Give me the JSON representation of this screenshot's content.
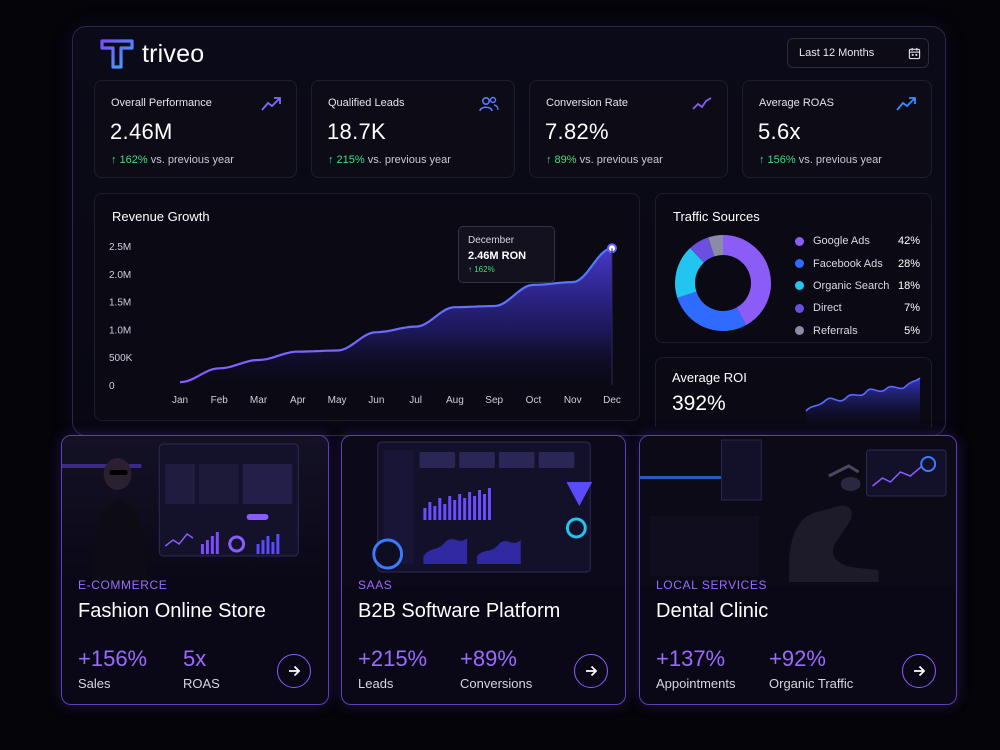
{
  "brand": {
    "name": "triveo",
    "accent": "#7b4dff",
    "accent_light": "#3aa8ff"
  },
  "date_range": {
    "label": "Last 12 Months",
    "icon": "calendar-icon"
  },
  "kpis": [
    {
      "title": "Overall Performance",
      "value": "2.46M",
      "delta": "↑ 162%",
      "delta_suffix": "vs. previous year",
      "icon": "trend-up-icon"
    },
    {
      "title": "Qualified Leads",
      "value": "18.7K",
      "delta": "↑ 215%",
      "delta_suffix": "vs. previous year",
      "icon": "users-icon"
    },
    {
      "title": "Conversion Rate",
      "value": "7.82%",
      "delta": "↑ 89%",
      "delta_suffix": "vs. previous year",
      "icon": "pulse-icon"
    },
    {
      "title": "Average ROAS",
      "value": "5.6x",
      "delta": "↑ 156%",
      "delta_suffix": "vs. previous year",
      "icon": "trend-up-icon"
    }
  ],
  "revenue": {
    "title": "Revenue Growth",
    "tooltip": {
      "month": "December",
      "value": "2.46M RON",
      "delta": "↑ 162%"
    }
  },
  "traffic": {
    "title": "Traffic Sources",
    "sources": [
      {
        "label": "Google Ads",
        "pct": "42%",
        "value": 42,
        "color": "#8b5cf6"
      },
      {
        "label": "Facebook Ads",
        "pct": "28%",
        "value": 28,
        "color": "#2f6bff"
      },
      {
        "label": "Organic Search",
        "pct": "18%",
        "value": 18,
        "color": "#22c4f0"
      },
      {
        "label": "Direct",
        "pct": "7%",
        "value": 7,
        "color": "#6a4fe0"
      },
      {
        "label": "Referrals",
        "pct": "5%",
        "value": 5,
        "color": "#8c8ba6"
      }
    ]
  },
  "roi": {
    "title": "Average ROI",
    "value": "392%"
  },
  "chart_data": {
    "type": "area",
    "title": "Revenue Growth",
    "categories": [
      "Jan",
      "Feb",
      "Mar",
      "Apr",
      "May",
      "Jun",
      "Jul",
      "Aug",
      "Sep",
      "Oct",
      "Nov",
      "Dec"
    ],
    "y_ticks": [
      "2.5M",
      "2.0M",
      "1.5M",
      "1.0M",
      "500K",
      "0"
    ],
    "ylim": [
      0,
      2500000
    ],
    "values": [
      50000,
      300000,
      450000,
      600000,
      620000,
      950000,
      1050000,
      1400000,
      1420000,
      1800000,
      1850000,
      2460000
    ],
    "grid": false
  },
  "cases": [
    {
      "category": "E-COMMERCE",
      "title": "Fashion Online Store",
      "stats": [
        {
          "value": "+156%",
          "label": "Sales"
        },
        {
          "value": "5x",
          "label": "ROAS"
        }
      ]
    },
    {
      "category": "SAAS",
      "title": "B2B Software Platform",
      "stats": [
        {
          "value": "+215%",
          "label": "Leads"
        },
        {
          "value": "+89%",
          "label": "Conversions"
        }
      ]
    },
    {
      "category": "LOCAL SERVICES",
      "title": "Dental Clinic",
      "stats": [
        {
          "value": "+137%",
          "label": "Appointments"
        },
        {
          "value": "+92%",
          "label": "Organic Traffic"
        }
      ]
    }
  ]
}
